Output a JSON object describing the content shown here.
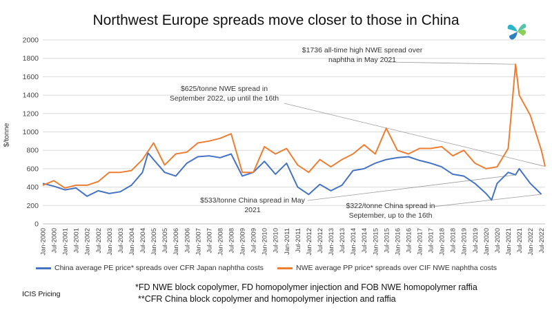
{
  "title": "Northwest Europe spreads move closer to those in China",
  "source": "ICIS Pricing",
  "footnotes": [
    "*FD NWE block copolymer, FD homopolymer injection and FOB NWE homopolymer raffia",
    "**CFR China block copolymer and homopolymer injection and raffia"
  ],
  "logo_icon": "icis-pinwheel-logo-icon",
  "chart_data": {
    "type": "line",
    "ylabel": "$/tonne",
    "ylim": [
      0,
      2000
    ],
    "yticks": [
      0,
      200,
      400,
      600,
      800,
      1000,
      1200,
      1400,
      1600,
      1800,
      2000
    ],
    "grid": true,
    "legend_position": "bottom",
    "x_start": "Jan-2000",
    "x_end": "Sep-2022",
    "x_ticks": [
      "Jan-2000",
      "Jul-2000",
      "Jan-2001",
      "Jul-2001",
      "Jan-2002",
      "Jul-2002",
      "Jan-2003",
      "Jul-2003",
      "Jan-2004",
      "Jul-2004",
      "Jan-2005",
      "Jul-2005",
      "Jan-2006",
      "Jul-2006",
      "Jan-2007",
      "Jul-2007",
      "Jan-2008",
      "Jul-2008",
      "Jan-2009",
      "Jul-2009",
      "Jan-2010",
      "Jul-2010",
      "Jan-2011",
      "Jul-2011",
      "Jan-2012",
      "Jul-2012",
      "Jan-2013",
      "Jul-2013",
      "Jan-2014",
      "Jul-2014",
      "Jan-2015",
      "Jul-2015",
      "Jan-2016",
      "Jul-2016",
      "Jan-2017",
      "Jul-2017",
      "Jan-2018",
      "Jul-2018",
      "Jan-2019",
      "Jul-2019",
      "Jan-2020",
      "Jul-2020",
      "Jan-2021",
      "Jul-2021",
      "Jan-2022",
      "Jul-2022"
    ],
    "series": [
      {
        "name": "China average PE price* spreads over CFR Japan naphtha costs",
        "color": "#4472C4",
        "points": [
          [
            "Jan-2000",
            440
          ],
          [
            "Jul-2000",
            410
          ],
          [
            "Jan-2001",
            370
          ],
          [
            "Jul-2001",
            390
          ],
          [
            "Jan-2002",
            300
          ],
          [
            "Jul-2002",
            360
          ],
          [
            "Jan-2003",
            330
          ],
          [
            "Jul-2003",
            350
          ],
          [
            "Jan-2004",
            420
          ],
          [
            "Jul-2004",
            560
          ],
          [
            "Oct-2004",
            770
          ],
          [
            "Jan-2005",
            700
          ],
          [
            "Jul-2005",
            560
          ],
          [
            "Jan-2006",
            520
          ],
          [
            "Jul-2006",
            660
          ],
          [
            "Jan-2007",
            730
          ],
          [
            "Jul-2007",
            740
          ],
          [
            "Jan-2008",
            720
          ],
          [
            "Jul-2008",
            760
          ],
          [
            "Jan-2009",
            520
          ],
          [
            "Jul-2009",
            560
          ],
          [
            "Jan-2010",
            680
          ],
          [
            "Jul-2010",
            540
          ],
          [
            "Jan-2011",
            660
          ],
          [
            "Jul-2011",
            400
          ],
          [
            "Jan-2012",
            320
          ],
          [
            "Jul-2012",
            430
          ],
          [
            "Jan-2013",
            360
          ],
          [
            "Jul-2013",
            420
          ],
          [
            "Jan-2014",
            580
          ],
          [
            "Jul-2014",
            600
          ],
          [
            "Jan-2015",
            660
          ],
          [
            "Jul-2015",
            700
          ],
          [
            "Jan-2016",
            720
          ],
          [
            "Jul-2016",
            730
          ],
          [
            "Jan-2017",
            690
          ],
          [
            "Jul-2017",
            660
          ],
          [
            "Jan-2018",
            620
          ],
          [
            "Jul-2018",
            540
          ],
          [
            "Jan-2019",
            520
          ],
          [
            "Jul-2019",
            440
          ],
          [
            "Jan-2020",
            330
          ],
          [
            "Apr-2020",
            260
          ],
          [
            "Jul-2020",
            440
          ],
          [
            "Jan-2021",
            560
          ],
          [
            "May-2021",
            533
          ],
          [
            "Jul-2021",
            600
          ],
          [
            "Jan-2022",
            440
          ],
          [
            "Jul-2022",
            322
          ]
        ]
      },
      {
        "name": "NWE average PP price* spreads over CIF NWE naphtha costs",
        "color": "#ED7D31",
        "points": [
          [
            "Jan-2000",
            420
          ],
          [
            "Jul-2000",
            470
          ],
          [
            "Jan-2001",
            390
          ],
          [
            "Jul-2001",
            420
          ],
          [
            "Jan-2002",
            420
          ],
          [
            "Jul-2002",
            460
          ],
          [
            "Jan-2003",
            560
          ],
          [
            "Jul-2003",
            560
          ],
          [
            "Jan-2004",
            580
          ],
          [
            "Jul-2004",
            700
          ],
          [
            "Jan-2005",
            880
          ],
          [
            "Jul-2005",
            640
          ],
          [
            "Jan-2006",
            760
          ],
          [
            "Jul-2006",
            780
          ],
          [
            "Jan-2007",
            880
          ],
          [
            "Jul-2007",
            900
          ],
          [
            "Jan-2008",
            930
          ],
          [
            "Jul-2008",
            980
          ],
          [
            "Jan-2009",
            560
          ],
          [
            "Jul-2009",
            560
          ],
          [
            "Jan-2010",
            840
          ],
          [
            "Jul-2010",
            760
          ],
          [
            "Jan-2011",
            820
          ],
          [
            "Jul-2011",
            640
          ],
          [
            "Jan-2012",
            560
          ],
          [
            "Jul-2012",
            700
          ],
          [
            "Jan-2013",
            620
          ],
          [
            "Jul-2013",
            700
          ],
          [
            "Jan-2014",
            760
          ],
          [
            "Jul-2014",
            860
          ],
          [
            "Jan-2015",
            760
          ],
          [
            "Jul-2015",
            1040
          ],
          [
            "Jan-2016",
            800
          ],
          [
            "Jul-2016",
            760
          ],
          [
            "Jan-2017",
            820
          ],
          [
            "Jul-2017",
            820
          ],
          [
            "Jan-2018",
            840
          ],
          [
            "Jul-2018",
            740
          ],
          [
            "Jan-2019",
            800
          ],
          [
            "Jul-2019",
            660
          ],
          [
            "Jan-2020",
            600
          ],
          [
            "Jul-2020",
            620
          ],
          [
            "Jan-2021",
            820
          ],
          [
            "May-2021",
            1736
          ],
          [
            "Jul-2021",
            1400
          ],
          [
            "Jan-2022",
            1180
          ],
          [
            "Jul-2022",
            800
          ],
          [
            "Sep-2022",
            625
          ]
        ]
      }
    ],
    "annotations": [
      "$1736 all-time high NWE spread over naphtha in May 2021",
      "$625/tonne  NWE  spread in September 2022, up until the 16th",
      "$533/tonne China spread in May 2021",
      "$322/tonne China spread in September, up to the 16th"
    ]
  }
}
